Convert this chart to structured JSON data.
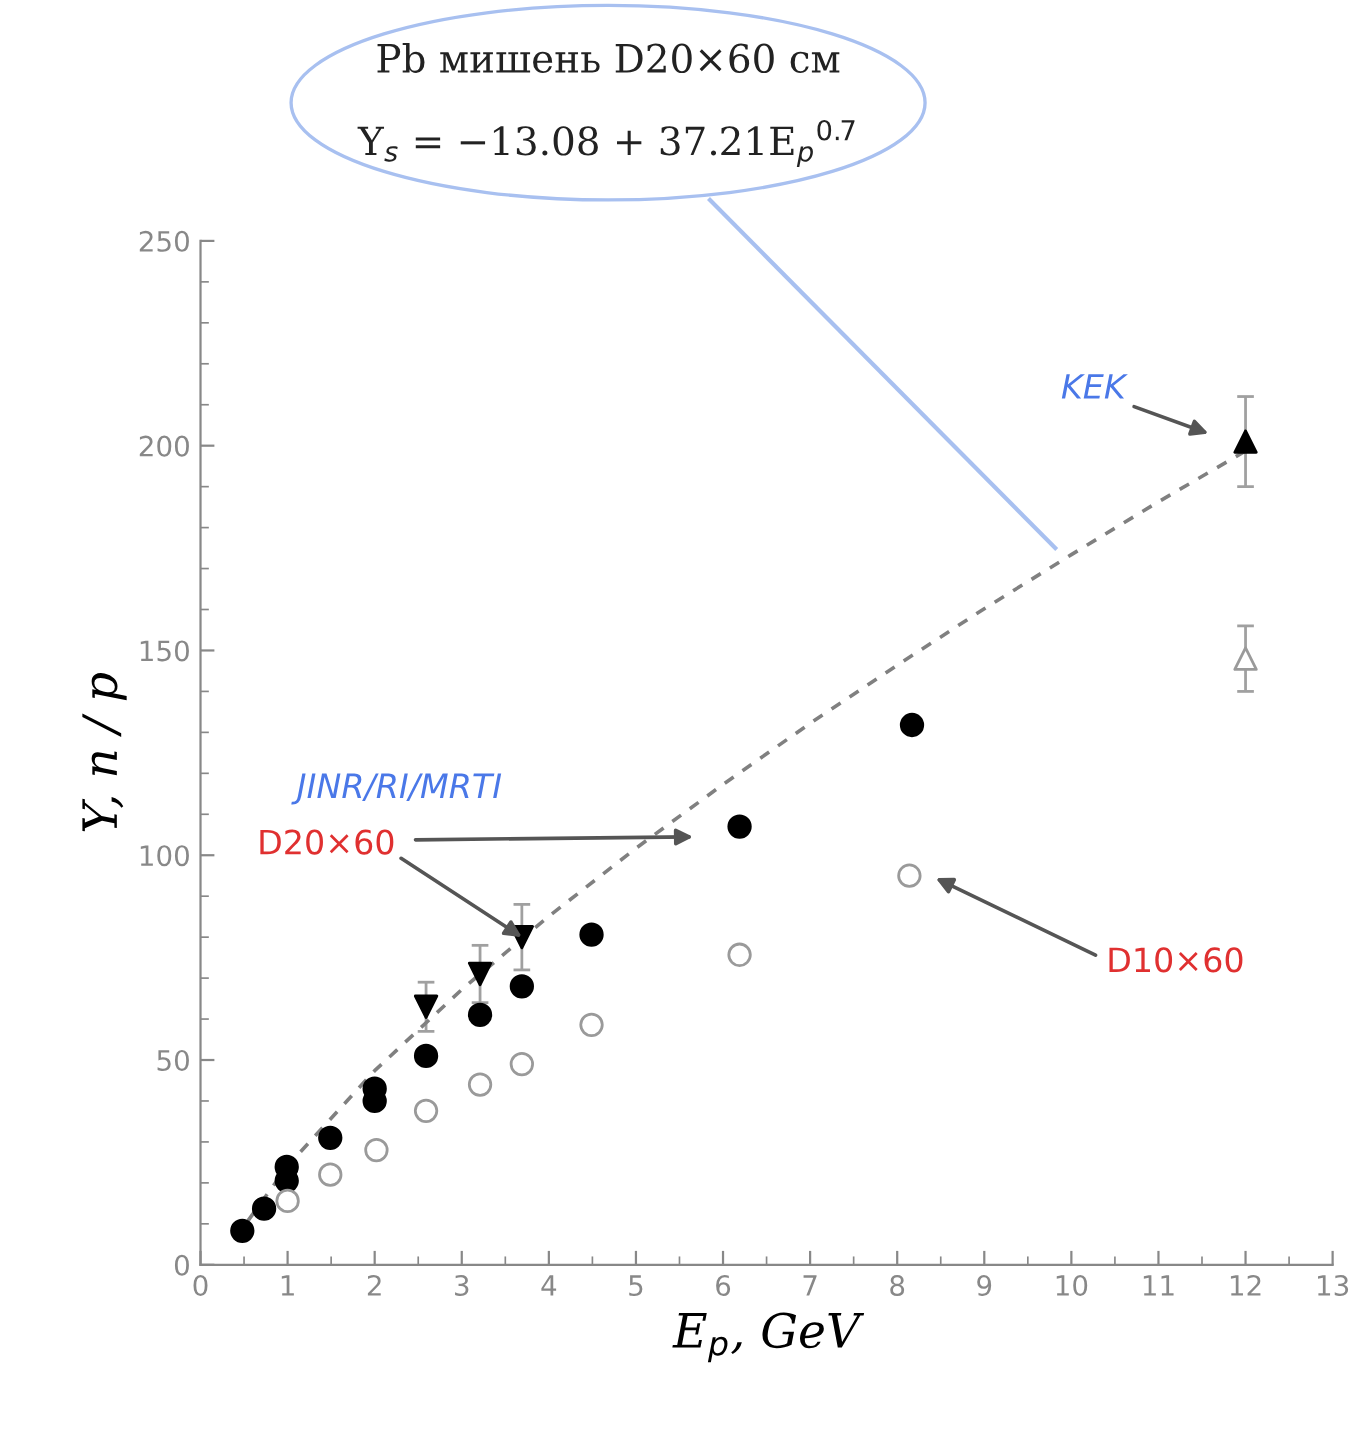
{
  "chart_data": {
    "type": "scatter",
    "xlabel": "E$_{p}$, GeV",
    "ylabel": "Y, n / p",
    "xlim": [
      0,
      13
    ],
    "xticks": [
      0,
      1,
      2,
      3,
      4,
      5,
      6,
      7,
      8,
      9,
      10,
      11,
      12,
      13
    ],
    "ylim": [
      0,
      250
    ],
    "yticks": [
      0,
      50,
      100,
      150,
      200,
      250
    ],
    "grid": false,
    "legend": false,
    "series": [
      {
        "marker": "circle",
        "color": "#000000",
        "x": [
          0.48,
          0.73,
          0.99,
          0.99,
          1.49,
          2.0,
          2.0,
          2.59,
          3.21,
          3.69,
          4.49,
          6.19,
          8.17
        ],
        "values": [
          8.3,
          13.7,
          23.9,
          20.5,
          31,
          43,
          40,
          51,
          61,
          68,
          80.6,
          107,
          131.8
        ]
      },
      {
        "marker": "circle",
        "color": "#9a9a9a",
        "x": [
          1.0,
          1.49,
          2.02,
          2.59,
          3.21,
          3.69,
          4.49,
          6.19,
          8.14
        ],
        "values": [
          15.6,
          22,
          28,
          37.6,
          44,
          49,
          58.6,
          75.7,
          95
        ]
      },
      {
        "marker": "triangle_down",
        "color": "#000000",
        "x": [
          2.59,
          3.21,
          3.69
        ],
        "values": [
          63,
          71,
          80
        ],
        "errors": [
          6,
          7,
          8
        ]
      },
      {
        "marker": "triangle",
        "color": "#000000",
        "x": [
          12
        ],
        "values": [
          201
        ],
        "errors": [
          11
        ]
      },
      {
        "marker": "triangle",
        "color": "#9a9a9a",
        "x": [
          12
        ],
        "values": [
          148
        ],
        "errors": [
          8
        ]
      },
      {
        "type": "line",
        "line_style": "dashed",
        "marker": "none",
        "color": "#808080",
        "x": [
          0.4,
          1,
          2,
          3,
          4,
          5,
          6,
          7,
          8,
          9,
          10,
          11,
          12
        ],
        "values": [
          6.5,
          24.1,
          47.4,
          67.2,
          85.1,
          101.7,
          117.3,
          132.2,
          146.4,
          160.2,
          173.4,
          186.3,
          198.7
        ]
      }
    ],
    "annotations": [
      "Pb мишень D20×60 см",
      "Y$_{s}$ = −13.08 + 37.21E$_{p}$$^{0.7}$",
      "JINR/RI/MRTI",
      {
        "text": "D20×60",
        "x": 3.69,
        "y": 80
      },
      "D10×60",
      "KEK"
    ]
  }
}
